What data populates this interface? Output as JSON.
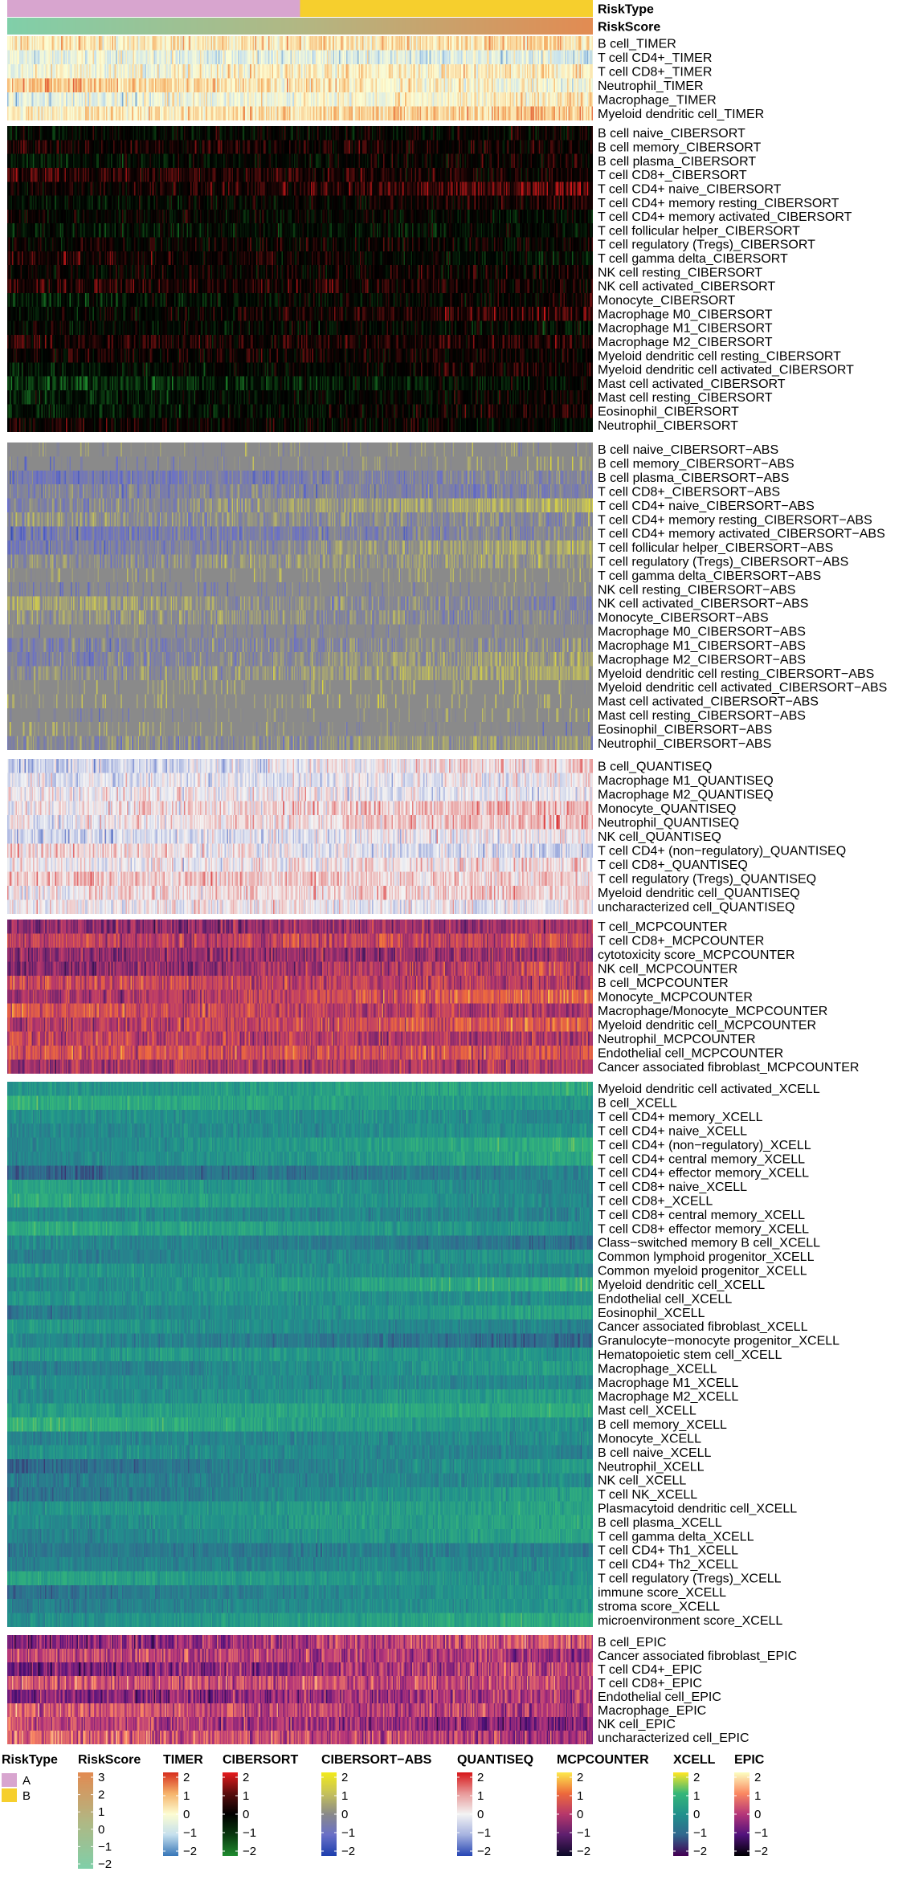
{
  "chart_data": {
    "type": "heatmap",
    "columns": 480,
    "risk_type_split_fraction": 0.5,
    "annotations": [
      {
        "label": "RiskType",
        "kind": "categorical"
      },
      {
        "label": "RiskScore",
        "kind": "continuous"
      }
    ],
    "blocks": [
      {
        "method": "TIMER",
        "palette": "timer",
        "rows": [
          "B cell_TIMER",
          "T cell CD4+_TIMER",
          "T cell CD8+_TIMER",
          "Neutrophil_TIMER",
          "Macrophage_TIMER",
          "Myeloid dendritic cell_TIMER"
        ]
      },
      {
        "method": "CIBERSORT",
        "palette": "cibersort",
        "rows": [
          "B cell naive_CIBERSORT",
          "B cell memory_CIBERSORT",
          "B cell plasma_CIBERSORT",
          "T cell CD8+_CIBERSORT",
          "T cell CD4+ naive_CIBERSORT",
          "T cell CD4+ memory resting_CIBERSORT",
          "T cell CD4+ memory activated_CIBERSORT",
          "T cell follicular helper_CIBERSORT",
          "T cell regulatory (Tregs)_CIBERSORT",
          "T cell gamma delta_CIBERSORT",
          "NK cell resting_CIBERSORT",
          "NK cell activated_CIBERSORT",
          "Monocyte_CIBERSORT",
          "Macrophage M0_CIBERSORT",
          "Macrophage M1_CIBERSORT",
          "Macrophage M2_CIBERSORT",
          "Myeloid dendritic cell resting_CIBERSORT",
          "Myeloid dendritic cell activated_CIBERSORT",
          "Mast cell activated_CIBERSORT",
          "Mast cell resting_CIBERSORT",
          "Eosinophil_CIBERSORT",
          "Neutrophil_CIBERSORT"
        ]
      },
      {
        "method": "CIBERSORT-ABS",
        "palette": "cibersortabs",
        "rows": [
          "B cell naive_CIBERSORT−ABS",
          "B cell memory_CIBERSORT−ABS",
          "B cell plasma_CIBERSORT−ABS",
          "T cell CD8+_CIBERSORT−ABS",
          "T cell CD4+ naive_CIBERSORT−ABS",
          "T cell CD4+ memory resting_CIBERSORT−ABS",
          "T cell CD4+ memory activated_CIBERSORT−ABS",
          "T cell follicular helper_CIBERSORT−ABS",
          "T cell regulatory (Tregs)_CIBERSORT−ABS",
          "T cell gamma delta_CIBERSORT−ABS",
          "NK cell resting_CIBERSORT−ABS",
          "NK cell activated_CIBERSORT−ABS",
          "Monocyte_CIBERSORT−ABS",
          "Macrophage M0_CIBERSORT−ABS",
          "Macrophage M1_CIBERSORT−ABS",
          "Macrophage M2_CIBERSORT−ABS",
          "Myeloid dendritic cell resting_CIBERSORT−ABS",
          "Myeloid dendritic cell activated_CIBERSORT−ABS",
          "Mast cell activated_CIBERSORT−ABS",
          "Mast cell resting_CIBERSORT−ABS",
          "Eosinophil_CIBERSORT−ABS",
          "Neutrophil_CIBERSORT−ABS"
        ]
      },
      {
        "method": "QUANTISEQ",
        "palette": "quantiseq",
        "rows": [
          "B cell_QUANTISEQ",
          "Macrophage M1_QUANTISEQ",
          "Macrophage M2_QUANTISEQ",
          "Monocyte_QUANTISEQ",
          "Neutrophil_QUANTISEQ",
          "NK cell_QUANTISEQ",
          "T cell CD4+ (non−regulatory)_QUANTISEQ",
          "T cell CD8+_QUANTISEQ",
          "T cell regulatory (Tregs)_QUANTISEQ",
          "Myeloid dendritic cell_QUANTISEQ",
          "uncharacterized cell_QUANTISEQ"
        ]
      },
      {
        "method": "MCPCOUNTER",
        "palette": "mcpcounter",
        "rows": [
          "T cell_MCPCOUNTER",
          "T cell CD8+_MCPCOUNTER",
          "cytotoxicity score_MCPCOUNTER",
          "NK cell_MCPCOUNTER",
          "B cell_MCPCOUNTER",
          "Monocyte_MCPCOUNTER",
          "Macrophage/Monocyte_MCPCOUNTER",
          "Myeloid dendritic cell_MCPCOUNTER",
          "Neutrophil_MCPCOUNTER",
          "Endothelial cell_MCPCOUNTER",
          "Cancer associated fibroblast_MCPCOUNTER"
        ]
      },
      {
        "method": "XCELL",
        "palette": "xcell",
        "rows": [
          "Myeloid dendritic cell activated_XCELL",
          "B cell_XCELL",
          "T cell CD4+ memory_XCELL",
          "T cell CD4+ naive_XCELL",
          "T cell CD4+ (non−regulatory)_XCELL",
          "T cell CD4+ central memory_XCELL",
          "T cell CD4+ effector memory_XCELL",
          "T cell CD8+ naive_XCELL",
          "T cell CD8+_XCELL",
          "T cell CD8+ central memory_XCELL",
          "T cell CD8+ effector memory_XCELL",
          "Class−switched memory B cell_XCELL",
          "Common lymphoid progenitor_XCELL",
          "Common myeloid progenitor_XCELL",
          "Myeloid dendritic cell_XCELL",
          "Endothelial cell_XCELL",
          "Eosinophil_XCELL",
          "Cancer associated fibroblast_XCELL",
          "Granulocyte−monocyte progenitor_XCELL",
          "Hematopoietic stem cell_XCELL",
          "Macrophage_XCELL",
          "Macrophage M1_XCELL",
          "Macrophage M2_XCELL",
          "Mast cell_XCELL",
          "B cell memory_XCELL",
          "Monocyte_XCELL",
          "B cell naive_XCELL",
          "Neutrophil_XCELL",
          "NK cell_XCELL",
          "T cell NK_XCELL",
          "Plasmacytoid dendritic cell_XCELL",
          "B cell plasma_XCELL",
          "T cell gamma delta_XCELL",
          "T cell CD4+ Th1_XCELL",
          "T cell CD4+ Th2_XCELL",
          "T cell regulatory (Tregs)_XCELL",
          "immune score_XCELL",
          "stroma score_XCELL",
          "microenvironment score_XCELL"
        ]
      },
      {
        "method": "EPIC",
        "palette": "epic",
        "rows": [
          "B cell_EPIC",
          "Cancer associated fibroblast_EPIC",
          "T cell CD4+_EPIC",
          "T cell CD8+_EPIC",
          "Endothelial cell_EPIC",
          "Macrophage_EPIC",
          "NK cell_EPIC",
          "uncharacterized cell_EPIC"
        ]
      }
    ],
    "legends": [
      {
        "title": "RiskType",
        "kind": "categorical",
        "entries": [
          {
            "label": "A",
            "color": "#d8a5cf"
          },
          {
            "label": "B",
            "color": "#f6cf2d"
          }
        ]
      },
      {
        "title": "RiskScore",
        "kind": "continuous",
        "palette": "riskscore",
        "ticks": [
          "3",
          "2",
          "1",
          "0",
          "−1",
          "−2"
        ]
      },
      {
        "title": "TIMER",
        "kind": "continuous",
        "palette": "timer",
        "ticks": [
          "2",
          "1",
          "0",
          "−1",
          "−2"
        ]
      },
      {
        "title": "CIBERSORT",
        "kind": "continuous",
        "palette": "cibersort",
        "ticks": [
          "2",
          "1",
          "0",
          "−1",
          "−2"
        ]
      },
      {
        "title": "CIBERSORT−ABS",
        "kind": "continuous",
        "palette": "cibersortabs",
        "ticks": [
          "2",
          "1",
          "0",
          "−1",
          "−2"
        ]
      },
      {
        "title": "QUANTISEQ",
        "kind": "continuous",
        "palette": "quantiseq",
        "ticks": [
          "2",
          "1",
          "0",
          "−1",
          "−2"
        ]
      },
      {
        "title": "MCPCOUNTER",
        "kind": "continuous",
        "palette": "mcpcounter",
        "ticks": [
          "2",
          "1",
          "0",
          "−1",
          "−2"
        ]
      },
      {
        "title": "XCELL",
        "kind": "continuous",
        "palette": "xcell",
        "ticks": [
          "2",
          "1",
          "0",
          "−1",
          "−2"
        ]
      },
      {
        "title": "EPIC",
        "kind": "continuous",
        "palette": "epic",
        "ticks": [
          "2",
          "1",
          "0",
          "−1",
          "−2"
        ]
      }
    ],
    "palettes": {
      "riskscore": [
        "#80cfa9",
        "#b2b783",
        "#e28b52"
      ],
      "timer": [
        "#3a78b9",
        "#c5e0ee",
        "#fdfdd3",
        "#f6b36b",
        "#d7301f"
      ],
      "cibersort": [
        "#1f8a2e",
        "#0a3a10",
        "#000000",
        "#5a0d0d",
        "#e41a1c"
      ],
      "cibersortabs": [
        "#1e3fae",
        "#6a70c8",
        "#8a8a8a",
        "#c6c25a",
        "#f2ea1c"
      ],
      "quantiseq": [
        "#2948b5",
        "#a7b3e0",
        "#f4f4f4",
        "#e89a9a",
        "#d7191c"
      ],
      "mcpcounter": [
        "#0e0a2a",
        "#5e1f6e",
        "#b7386b",
        "#ee6a3c",
        "#fde74c"
      ],
      "xcell": [
        "#440154",
        "#31688e",
        "#21918c",
        "#35b779",
        "#fde725"
      ],
      "epic": [
        "#000004",
        "#51127c",
        "#b63679",
        "#fb8861",
        "#fcfdbf"
      ]
    }
  }
}
